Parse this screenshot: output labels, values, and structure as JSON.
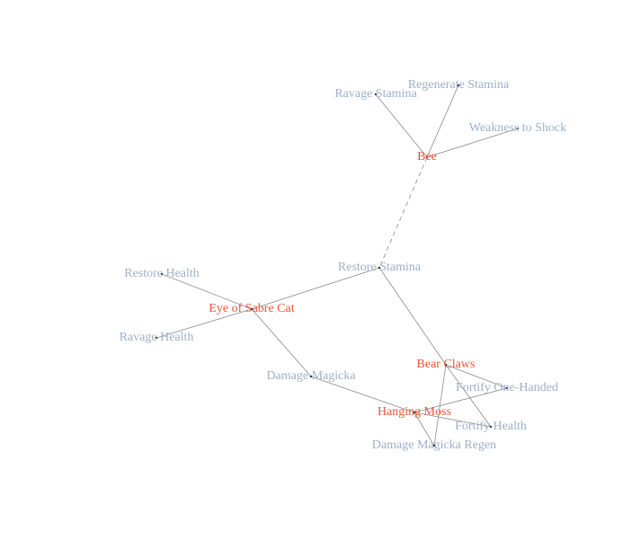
{
  "colors": {
    "ingredient": "#e8553a",
    "effect": "#9fb0c8"
  },
  "nodes": [
    {
      "id": "ravage-stamina",
      "label": "Ravage Stamina",
      "kind": "effect"
    },
    {
      "id": "regenerate-stamina",
      "label": "Regenerate Stamina",
      "kind": "effect"
    },
    {
      "id": "weakness-to-shock",
      "label": "Weakness to Shock",
      "kind": "effect"
    },
    {
      "id": "bee",
      "label": "Bee",
      "kind": "ingredient"
    },
    {
      "id": "restore-stamina",
      "label": "Restore Stamina",
      "kind": "effect"
    },
    {
      "id": "restore-health",
      "label": "Restore Health",
      "kind": "effect"
    },
    {
      "id": "eye-of-sabre-cat",
      "label": "Eye of Sabre Cat",
      "kind": "ingredient"
    },
    {
      "id": "ravage-health",
      "label": "Ravage Health",
      "kind": "effect"
    },
    {
      "id": "damage-magicka",
      "label": "Damage Magicka",
      "kind": "effect"
    },
    {
      "id": "bear-claws",
      "label": "Bear Claws",
      "kind": "ingredient"
    },
    {
      "id": "fortify-one-handed",
      "label": "Fortify One-Handed",
      "kind": "effect"
    },
    {
      "id": "hanging-moss",
      "label": "Hanging Moss",
      "kind": "ingredient"
    },
    {
      "id": "fortify-health",
      "label": "Fortify Health",
      "kind": "effect"
    },
    {
      "id": "damage-magicka-regen",
      "label": "Damage Magicka Regen",
      "kind": "effect"
    }
  ],
  "edges": [
    {
      "from": "bee",
      "to": "ravage-stamina",
      "style": "solid"
    },
    {
      "from": "bee",
      "to": "regenerate-stamina",
      "style": "solid"
    },
    {
      "from": "bee",
      "to": "weakness-to-shock",
      "style": "solid"
    },
    {
      "from": "bee",
      "to": "restore-stamina",
      "style": "dashed"
    },
    {
      "from": "eye-of-sabre-cat",
      "to": "restore-stamina",
      "style": "solid"
    },
    {
      "from": "eye-of-sabre-cat",
      "to": "restore-health",
      "style": "solid"
    },
    {
      "from": "eye-of-sabre-cat",
      "to": "ravage-health",
      "style": "solid"
    },
    {
      "from": "eye-of-sabre-cat",
      "to": "damage-magicka",
      "style": "solid"
    },
    {
      "from": "bear-claws",
      "to": "restore-stamina",
      "style": "solid"
    },
    {
      "from": "bear-claws",
      "to": "fortify-one-handed",
      "style": "solid"
    },
    {
      "from": "bear-claws",
      "to": "fortify-health",
      "style": "solid"
    },
    {
      "from": "bear-claws",
      "to": "damage-magicka-regen",
      "style": "solid"
    },
    {
      "from": "hanging-moss",
      "to": "damage-magicka",
      "style": "solid"
    },
    {
      "from": "hanging-moss",
      "to": "fortify-one-handed",
      "style": "solid"
    },
    {
      "from": "hanging-moss",
      "to": "fortify-health",
      "style": "solid"
    },
    {
      "from": "hanging-moss",
      "to": "damage-magicka-regen",
      "style": "solid"
    }
  ]
}
